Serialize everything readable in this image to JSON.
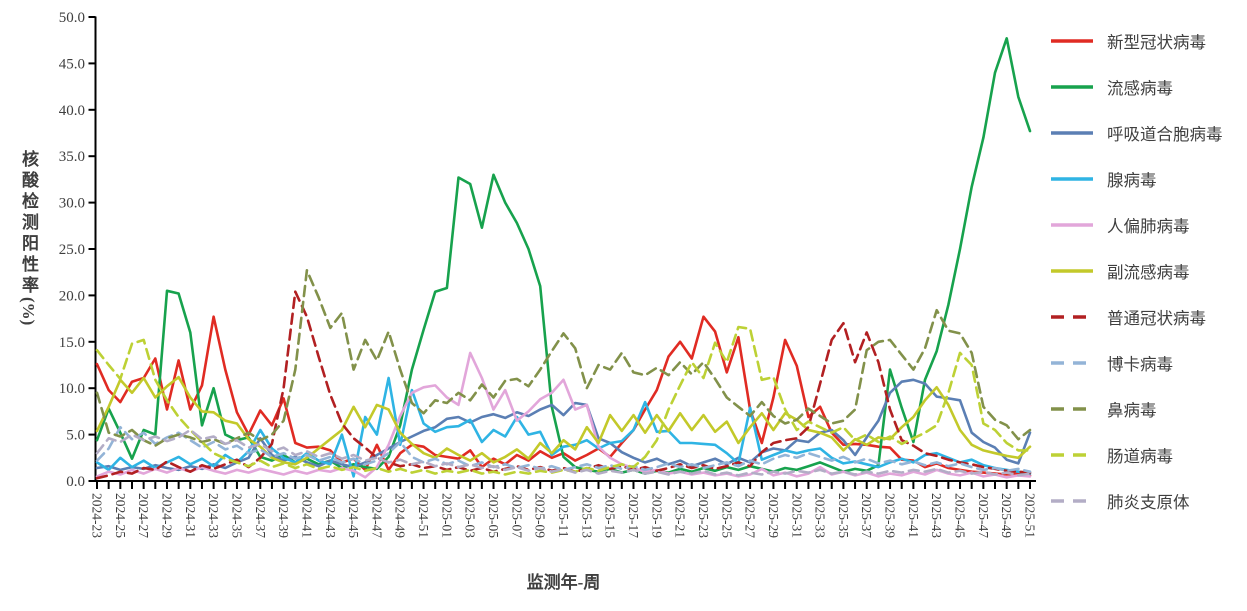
{
  "axes": {
    "y_title_main": "核酸检测阳性率",
    "y_title_unit": "(%)",
    "x_title": "监测年-周",
    "y_tick_labels": [
      "0.0",
      "5.0",
      "10.0",
      "15.0",
      "20.0",
      "25.0",
      "30.0",
      "35.0",
      "40.0",
      "45.0",
      "50.0"
    ],
    "x_tick_label_step": 2,
    "text_color": "#3f3f3f",
    "axis_color": "#000000"
  },
  "chart_data": {
    "type": "line",
    "title": "",
    "xlabel": "监测年-周",
    "ylabel": "核酸检测阳性率(%)",
    "ylim": [
      0,
      50
    ],
    "grid": false,
    "legend_position": "right",
    "x": [
      "2024-23",
      "2024-24",
      "2024-25",
      "2024-26",
      "2024-27",
      "2024-28",
      "2024-29",
      "2024-30",
      "2024-31",
      "2024-32",
      "2024-33",
      "2024-34",
      "2024-35",
      "2024-36",
      "2024-37",
      "2024-38",
      "2024-39",
      "2024-40",
      "2024-41",
      "2024-42",
      "2024-43",
      "2024-44",
      "2024-45",
      "2024-46",
      "2024-47",
      "2024-48",
      "2024-49",
      "2024-50",
      "2024-51",
      "2024-52",
      "2025-01",
      "2025-02",
      "2025-03",
      "2025-04",
      "2025-05",
      "2025-06",
      "2025-07",
      "2025-08",
      "2025-09",
      "2025-10",
      "2025-11",
      "2025-12",
      "2025-13",
      "2025-14",
      "2025-15",
      "2025-16",
      "2025-17",
      "2025-18",
      "2025-19",
      "2025-20",
      "2025-21",
      "2025-22",
      "2025-23",
      "2025-24",
      "2025-25",
      "2025-26",
      "2025-27",
      "2025-28",
      "2025-29",
      "2025-30",
      "2025-31",
      "2025-32",
      "2025-33",
      "2025-34",
      "2025-35",
      "2025-36",
      "2025-37",
      "2025-38",
      "2025-39",
      "2025-40",
      "2025-41",
      "2025-42",
      "2025-43",
      "2025-44",
      "2025-45",
      "2025-46",
      "2025-47",
      "2025-48",
      "2025-49",
      "2025-50",
      "2025-51"
    ],
    "series": [
      {
        "key": "novel-coronavirus",
        "label": "新型冠状病毒",
        "color": "#e02b23",
        "dash": false,
        "values": [
          12.6,
          9.8,
          8.5,
          10.7,
          11.1,
          13.2,
          7.7,
          13.0,
          7.7,
          10.3,
          17.7,
          12.0,
          7.4,
          5.0,
          7.6,
          6.0,
          8.9,
          4.1,
          3.6,
          3.7,
          3.3,
          2.0,
          2.4,
          1.2,
          3.9,
          1.2,
          3.0,
          3.9,
          3.7,
          2.8,
          2.6,
          2.4,
          3.3,
          1.5,
          2.4,
          1.8,
          2.8,
          2.2,
          3.2,
          2.5,
          3.0,
          2.2,
          2.8,
          3.5,
          2.6,
          4.1,
          5.5,
          7.7,
          9.8,
          13.4,
          15.0,
          13.2,
          17.7,
          16.1,
          11.7,
          15.5,
          7.7,
          4.1,
          9.0,
          15.2,
          12.4,
          6.9,
          8.0,
          5.2,
          3.9,
          4.0,
          3.9,
          3.7,
          3.6,
          2.3,
          2.2,
          1.5,
          1.9,
          1.4,
          1.2,
          1.0,
          0.9,
          0.8,
          0.7,
          0.8,
          0.6
        ]
      },
      {
        "key": "influenza",
        "label": "流感病毒",
        "color": "#17a24d",
        "dash": false,
        "values": [
          4.4,
          7.8,
          5.2,
          2.4,
          5.5,
          5.0,
          20.5,
          20.2,
          16.0,
          6.0,
          10.0,
          5.0,
          4.4,
          4.7,
          2.6,
          2.2,
          2.8,
          2.0,
          2.4,
          1.8,
          2.2,
          1.4,
          1.8,
          1.5,
          1.3,
          2.6,
          6.0,
          12.0,
          16.3,
          20.4,
          20.8,
          32.7,
          32.0,
          27.3,
          33.0,
          30.0,
          27.8,
          25.0,
          21.0,
          8.0,
          2.6,
          1.5,
          1.2,
          1.0,
          1.3,
          0.9,
          1.2,
          0.8,
          1.1,
          0.9,
          1.3,
          1.0,
          1.4,
          1.1,
          1.5,
          1.2,
          1.6,
          1.3,
          1.0,
          1.4,
          1.2,
          1.6,
          2.0,
          1.5,
          1.0,
          1.3,
          1.1,
          1.7,
          12.0,
          7.9,
          4.2,
          10.9,
          14.0,
          19.0,
          25.0,
          31.7,
          37.0,
          44.0,
          47.7,
          41.4,
          37.7
        ]
      },
      {
        "key": "rsv",
        "label": "呼吸道合胞病毒",
        "color": "#5b7fb4",
        "dash": false,
        "values": [
          1.4,
          1.6,
          1.2,
          1.5,
          1.3,
          1.7,
          1.4,
          1.2,
          1.6,
          1.3,
          1.8,
          1.4,
          2.0,
          2.5,
          4.6,
          2.8,
          2.2,
          2.6,
          2.0,
          1.6,
          2.2,
          1.8,
          1.5,
          2.0,
          2.8,
          3.5,
          4.2,
          4.8,
          5.4,
          5.8,
          6.7,
          6.9,
          6.3,
          6.9,
          7.2,
          6.8,
          7.4,
          7.0,
          7.7,
          8.2,
          7.1,
          8.4,
          8.2,
          4.6,
          4.1,
          3.1,
          2.5,
          2.0,
          2.4,
          1.8,
          2.2,
          1.6,
          2.0,
          2.4,
          1.8,
          2.5,
          2.0,
          3.1,
          3.5,
          3.3,
          4.4,
          4.2,
          5.2,
          5.5,
          4.4,
          2.8,
          4.7,
          6.5,
          9.5,
          10.7,
          10.9,
          10.5,
          9.1,
          8.9,
          8.7,
          5.2,
          4.2,
          3.6,
          2.3,
          1.9,
          5.2
        ]
      },
      {
        "key": "adenovirus",
        "label": "腺病毒",
        "color": "#2fb4e4",
        "dash": false,
        "values": [
          2.0,
          1.2,
          2.5,
          1.5,
          2.2,
          1.4,
          2.0,
          2.6,
          1.8,
          2.4,
          1.6,
          2.8,
          2.0,
          3.2,
          5.5,
          3.5,
          2.5,
          2.0,
          3.0,
          2.2,
          1.8,
          5.0,
          0.5,
          6.9,
          5.0,
          11.1,
          3.9,
          9.8,
          6.2,
          5.3,
          5.8,
          5.9,
          6.6,
          4.2,
          5.5,
          4.8,
          6.9,
          5.0,
          5.3,
          2.8,
          3.7,
          3.9,
          4.4,
          3.5,
          4.1,
          4.3,
          5.5,
          8.5,
          5.3,
          5.4,
          4.1,
          4.1,
          4.0,
          3.9,
          3.0,
          1.9,
          7.9,
          2.3,
          2.8,
          3.3,
          3.0,
          3.3,
          3.5,
          2.5,
          1.9,
          2.1,
          1.8,
          1.5,
          2.0,
          2.4,
          2.0,
          2.8,
          3.0,
          2.5,
          2.0,
          2.3,
          1.7,
          1.4,
          1.2,
          1.0,
          0.8
        ]
      },
      {
        "key": "hmpv",
        "label": "人偏肺病毒",
        "color": "#e2a6da",
        "dash": false,
        "values": [
          0.5,
          1.0,
          0.7,
          1.2,
          0.8,
          1.3,
          0.9,
          1.4,
          1.0,
          1.5,
          1.1,
          0.8,
          1.2,
          0.9,
          1.3,
          1.0,
          0.7,
          1.1,
          0.8,
          1.2,
          1.0,
          1.4,
          1.1,
          0.4,
          1.5,
          3.9,
          7.0,
          9.5,
          10.1,
          10.3,
          9.0,
          8.2,
          13.8,
          11.1,
          7.7,
          9.8,
          6.5,
          7.5,
          8.8,
          9.5,
          10.9,
          7.7,
          8.2,
          3.7,
          2.5,
          1.8,
          1.4,
          1.0,
          1.2,
          0.8,
          1.0,
          0.7,
          0.9,
          0.6,
          0.8,
          0.5,
          0.7,
          1.3,
          0.6,
          0.9,
          0.5,
          0.8,
          1.5,
          0.7,
          1.0,
          0.6,
          0.9,
          0.5,
          0.8,
          0.6,
          1.0,
          0.7,
          1.2,
          0.8,
          0.6,
          0.9,
          0.5,
          0.7,
          0.4,
          0.6,
          0.5
        ]
      },
      {
        "key": "parainfluenza",
        "label": "副流感病毒",
        "color": "#c3c92a",
        "dash": false,
        "values": [
          5.4,
          8.0,
          10.9,
          9.5,
          11.1,
          9.0,
          10.2,
          11.2,
          9.0,
          7.5,
          7.4,
          6.5,
          6.2,
          4.5,
          3.7,
          2.5,
          2.0,
          1.8,
          2.5,
          3.5,
          4.5,
          5.5,
          8.0,
          5.8,
          8.2,
          7.7,
          5.2,
          4.0,
          3.0,
          2.5,
          3.5,
          2.8,
          2.2,
          3.0,
          2.0,
          2.6,
          3.4,
          2.4,
          4.1,
          3.0,
          4.4,
          3.4,
          5.8,
          4.1,
          7.1,
          5.4,
          7.1,
          5.2,
          7.1,
          5.4,
          7.3,
          5.5,
          7.1,
          5.3,
          6.4,
          4.1,
          5.8,
          7.3,
          5.5,
          7.3,
          6.6,
          5.5,
          5.2,
          4.7,
          3.3,
          4.5,
          3.9,
          4.7,
          4.5,
          5.8,
          6.9,
          8.7,
          10.1,
          8.2,
          5.5,
          3.9,
          3.3,
          3.0,
          2.7,
          2.5,
          3.7
        ]
      },
      {
        "key": "common-coronavirus",
        "label": "普通冠状病毒",
        "color": "#b22022",
        "dash": true,
        "values": [
          0.3,
          0.6,
          1.0,
          0.8,
          1.4,
          1.2,
          2.1,
          1.5,
          1.0,
          1.7,
          1.3,
          1.8,
          2.3,
          1.5,
          2.5,
          4.0,
          10.0,
          20.4,
          17.7,
          13.4,
          9.3,
          6.2,
          4.6,
          3.6,
          2.5,
          2.0,
          1.6,
          1.8,
          1.4,
          1.6,
          1.2,
          1.5,
          1.1,
          1.4,
          1.0,
          1.3,
          1.6,
          1.2,
          1.5,
          1.1,
          1.4,
          1.0,
          1.3,
          1.7,
          1.3,
          1.6,
          1.2,
          1.5,
          1.1,
          1.4,
          1.8,
          1.4,
          1.7,
          1.3,
          1.6,
          2.0,
          1.6,
          3.1,
          4.1,
          4.4,
          4.6,
          5.8,
          10.5,
          15.2,
          17.0,
          12.8,
          16.0,
          12.8,
          7.7,
          4.4,
          3.8,
          3.0,
          2.7,
          2.3,
          2.0,
          1.8,
          1.5,
          1.3,
          1.1,
          1.0,
          0.9
        ]
      },
      {
        "key": "bocavirus",
        "label": "博卡病毒",
        "color": "#93b4d7",
        "dash": true,
        "values": [
          2.2,
          3.5,
          5.8,
          4.5,
          5.2,
          4.0,
          4.7,
          5.2,
          4.4,
          3.6,
          4.2,
          3.4,
          3.8,
          3.0,
          3.4,
          2.6,
          3.0,
          2.4,
          2.8,
          2.2,
          2.6,
          2.0,
          2.4,
          1.8,
          2.2,
          3.0,
          4.2,
          2.6,
          2.0,
          2.4,
          1.8,
          2.2,
          1.6,
          2.0,
          1.5,
          1.8,
          1.4,
          1.7,
          1.3,
          1.6,
          1.2,
          1.5,
          1.8,
          1.4,
          1.7,
          1.3,
          1.6,
          1.2,
          1.5,
          1.9,
          1.5,
          1.8,
          1.4,
          1.7,
          2.0,
          1.6,
          2.2,
          1.8,
          2.4,
          2.8,
          2.5,
          3.0,
          2.6,
          2.2,
          2.6,
          2.0,
          2.4,
          1.9,
          2.2,
          1.8,
          2.1,
          1.7,
          2.0,
          1.6,
          1.9,
          1.5,
          1.2,
          1.4,
          1.1,
          1.3,
          1.0
        ]
      },
      {
        "key": "rhinovirus",
        "label": "鼻病毒",
        "color": "#82914a",
        "dash": true,
        "values": [
          9.5,
          5.2,
          4.8,
          5.5,
          4.4,
          3.8,
          4.6,
          5.0,
          4.7,
          4.2,
          4.5,
          4.0,
          4.6,
          5.2,
          4.4,
          5.0,
          6.5,
          12.0,
          22.7,
          19.8,
          16.5,
          18.1,
          12.0,
          15.2,
          13.0,
          16.1,
          12.0,
          8.4,
          7.3,
          8.7,
          8.4,
          9.5,
          8.7,
          10.4,
          9.0,
          10.8,
          11.0,
          10.2,
          12.0,
          14.0,
          15.9,
          14.3,
          10.0,
          12.5,
          12.0,
          13.8,
          11.7,
          11.4,
          12.2,
          11.4,
          12.8,
          11.5,
          12.8,
          11.0,
          9.0,
          8.0,
          7.0,
          8.5,
          7.0,
          6.2,
          6.6,
          7.8,
          7.0,
          6.2,
          6.5,
          7.7,
          14.1,
          15.0,
          15.2,
          13.6,
          12.0,
          14.3,
          18.4,
          16.2,
          15.9,
          13.8,
          8.0,
          6.6,
          6.0,
          4.5,
          5.5
        ]
      },
      {
        "key": "enterovirus",
        "label": "肠道病毒",
        "color": "#bdd135",
        "dash": true,
        "values": [
          14.1,
          12.5,
          11.0,
          14.8,
          15.2,
          10.9,
          8.7,
          6.9,
          5.5,
          4.2,
          3.0,
          2.4,
          2.0,
          1.6,
          2.2,
          1.5,
          1.9,
          1.4,
          1.8,
          1.3,
          1.6,
          1.2,
          1.5,
          1.1,
          1.4,
          1.0,
          1.3,
          0.9,
          1.2,
          0.8,
          1.1,
          0.9,
          1.2,
          0.8,
          1.0,
          0.7,
          1.0,
          0.8,
          1.1,
          0.9,
          1.2,
          1.0,
          1.4,
          1.1,
          1.5,
          1.8,
          1.5,
          2.6,
          4.4,
          7.7,
          10.3,
          12.8,
          11.1,
          14.9,
          12.8,
          16.6,
          16.4,
          10.9,
          11.2,
          7.7,
          5.5,
          6.4,
          5.8,
          5.2,
          5.8,
          4.4,
          5.0,
          4.2,
          4.8,
          4.0,
          4.6,
          5.2,
          6.0,
          9.5,
          13.8,
          12.5,
          6.2,
          5.5,
          4.1,
          3.3,
          3.3
        ]
      },
      {
        "key": "mycoplasma-pneumoniae",
        "label": "肺炎支原体",
        "color": "#b3adc6",
        "dash": true,
        "values": [
          3.0,
          4.6,
          4.2,
          5.0,
          4.4,
          4.8,
          4.3,
          4.7,
          5.5,
          4.5,
          4.8,
          4.0,
          4.4,
          3.6,
          4.0,
          3.2,
          3.6,
          2.8,
          3.2,
          2.6,
          3.0,
          2.4,
          2.8,
          2.2,
          2.5,
          2.0,
          2.3,
          1.8,
          2.1,
          1.6,
          1.9,
          1.5,
          1.8,
          1.4,
          1.6,
          1.2,
          1.5,
          1.1,
          1.4,
          1.0,
          1.3,
          0.9,
          1.2,
          0.8,
          1.1,
          0.9,
          1.2,
          0.8,
          1.0,
          0.7,
          1.0,
          0.8,
          1.1,
          0.7,
          0.9,
          0.6,
          0.9,
          0.7,
          1.0,
          0.8,
          1.1,
          0.9,
          1.2,
          0.8,
          1.0,
          0.7,
          1.0,
          0.8,
          1.1,
          0.9,
          1.2,
          1.0,
          1.3,
          0.9,
          1.1,
          0.8,
          1.0,
          0.7,
          0.9,
          0.6,
          0.8
        ]
      }
    ]
  }
}
